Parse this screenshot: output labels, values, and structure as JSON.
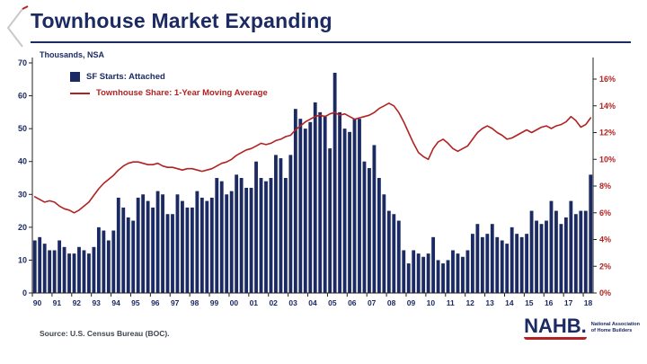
{
  "title": "Townhouse Market Expanding",
  "legend": {
    "bars": "SF Starts: Attached",
    "line": "Townhouse Share: 1-Year Moving Average"
  },
  "source": "Source: U.S. Census Bureau (BOC).",
  "logo": {
    "name": "NAHB.",
    "subtext1": "National Association",
    "subtext2": "of Home Builders"
  },
  "colors": {
    "navy": "#1b2a63",
    "red": "#b22222",
    "axis": "#222222"
  },
  "chart_data": {
    "type": "bar+line",
    "title": "Townhouse Market Expanding",
    "x_tick_labels": [
      "90",
      "91",
      "92",
      "93",
      "94",
      "95",
      "96",
      "97",
      "98",
      "99",
      "00",
      "01",
      "02",
      "03",
      "04",
      "05",
      "06",
      "07",
      "08",
      "09",
      "10",
      "11",
      "12",
      "13",
      "14",
      "15",
      "16",
      "17",
      "18"
    ],
    "quarters_per_year": 4,
    "left_axis": {
      "label": "Thousands, NSA",
      "min": 0,
      "max": 70,
      "step": 10
    },
    "right_axis": {
      "min": 0,
      "max": 16,
      "step": 2,
      "format": "percent"
    },
    "grid": false,
    "legend_position": "top-left-inside",
    "series": [
      {
        "name": "SF Starts: Attached",
        "type": "bar",
        "axis": "left",
        "values": [
          16,
          17,
          15,
          13,
          13,
          16,
          14,
          12,
          12,
          14,
          13,
          12,
          14,
          20,
          19,
          16,
          19,
          29,
          26,
          23,
          22,
          29,
          30,
          28,
          26,
          31,
          30,
          24,
          24,
          30,
          28,
          26,
          26,
          31,
          29,
          28,
          29,
          35,
          34,
          30,
          31,
          36,
          35,
          32,
          32,
          40,
          35,
          34,
          35,
          42,
          41,
          35,
          42,
          56,
          53,
          50,
          52,
          58,
          55,
          54,
          44,
          67,
          55,
          50,
          49,
          53,
          53,
          40,
          38,
          45,
          35,
          30,
          25,
          24,
          22,
          13,
          9,
          13,
          12,
          11,
          12,
          17,
          10,
          9,
          10,
          13,
          12,
          11,
          13,
          18,
          21,
          17,
          18,
          21,
          17,
          16,
          15,
          20,
          18,
          17,
          18,
          25,
          22,
          21,
          22,
          28,
          25,
          21,
          23,
          28,
          24,
          25,
          25,
          36
        ]
      },
      {
        "name": "Townhouse Share: 1-Year Moving Average",
        "type": "line",
        "axis": "right",
        "values": [
          7.2,
          7.0,
          6.8,
          6.9,
          6.8,
          6.5,
          6.3,
          6.2,
          6.0,
          6.2,
          6.5,
          6.8,
          7.3,
          7.8,
          8.2,
          8.5,
          8.8,
          9.2,
          9.5,
          9.7,
          9.8,
          9.8,
          9.7,
          9.6,
          9.6,
          9.7,
          9.5,
          9.4,
          9.4,
          9.3,
          9.2,
          9.3,
          9.3,
          9.2,
          9.1,
          9.2,
          9.3,
          9.5,
          9.7,
          9.8,
          10.0,
          10.3,
          10.5,
          10.7,
          10.8,
          11.0,
          11.2,
          11.1,
          11.2,
          11.4,
          11.5,
          11.7,
          11.8,
          12.2,
          12.5,
          12.8,
          13.0,
          13.2,
          13.3,
          13.2,
          13.4,
          13.5,
          13.3,
          13.4,
          13.2,
          13.0,
          13.1,
          13.2,
          13.3,
          13.5,
          13.8,
          14.0,
          14.2,
          14.0,
          13.5,
          12.8,
          12.0,
          11.2,
          10.5,
          10.2,
          10.0,
          10.8,
          11.3,
          11.5,
          11.2,
          10.8,
          10.6,
          10.8,
          11.0,
          11.5,
          12.0,
          12.3,
          12.5,
          12.3,
          12.0,
          11.8,
          11.5,
          11.6,
          11.8,
          12.0,
          12.2,
          12.0,
          12.2,
          12.4,
          12.5,
          12.3,
          12.5,
          12.6,
          12.8,
          13.2,
          12.9,
          12.4,
          12.6,
          13.1
        ]
      }
    ]
  }
}
